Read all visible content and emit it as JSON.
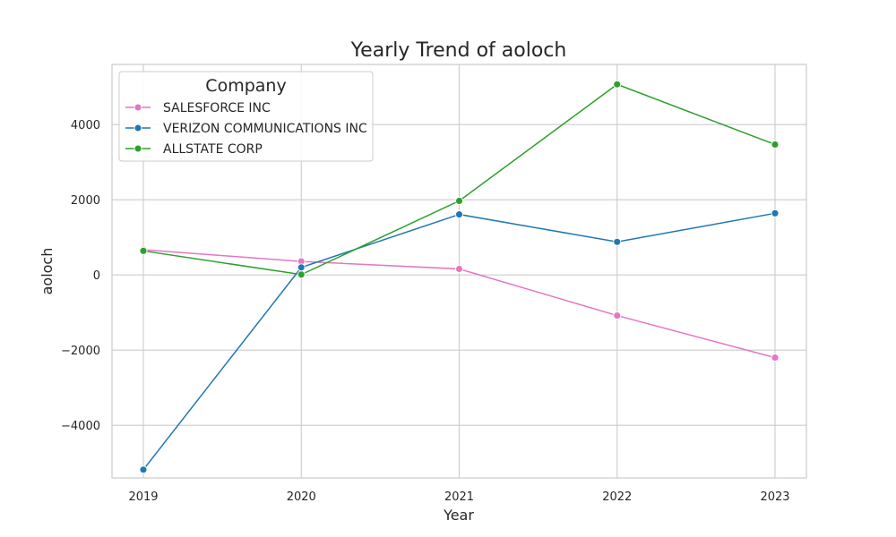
{
  "chart_data": {
    "type": "line",
    "title": "Yearly Trend of aoloch",
    "xlabel": "Year",
    "ylabel": "aoloch",
    "x": [
      "2019",
      "2020",
      "2021",
      "2022",
      "2023"
    ],
    "y_ticks": [
      4000,
      2000,
      0,
      -2000,
      -4000
    ],
    "y_tick_labels": [
      "4000",
      "2000",
      "0",
      "−2000",
      "−4000"
    ],
    "ylim": [
      -5400,
      5600
    ],
    "grid": true,
    "legend": {
      "title": "Company",
      "placement": "top-left"
    },
    "series": [
      {
        "name": "SALESFORCE INC",
        "color": "#e377c2",
        "values": [
          670,
          360,
          160,
          -1080,
          -2200
        ]
      },
      {
        "name": "VERIZON COMMUNICATIONS INC",
        "color": "#1f77b4",
        "values": [
          -5180,
          200,
          1610,
          880,
          1640
        ]
      },
      {
        "name": "ALLSTATE CORP",
        "color": "#2ca02c",
        "values": [
          640,
          10,
          1970,
          5070,
          3470
        ]
      }
    ]
  }
}
